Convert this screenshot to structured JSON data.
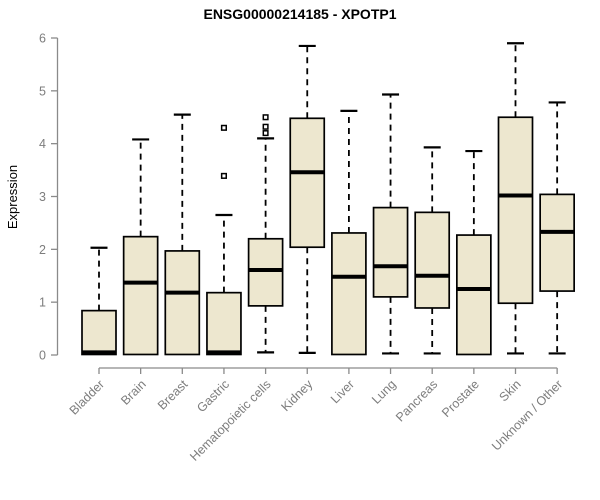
{
  "chart_data": {
    "type": "boxplot",
    "title": "ENSG00000214185 - XPOTP1",
    "xlabel": "",
    "ylabel": "Expression",
    "ylim": [
      0,
      6
    ],
    "yticks": [
      0,
      1,
      2,
      3,
      4,
      5,
      6
    ],
    "grid": "off",
    "legend": "none",
    "categories": [
      "Bladder",
      "Brain",
      "Breast",
      "Gastric",
      "Hematopoietic cells",
      "Kidney",
      "Liver",
      "Lung",
      "Pancreas",
      "Prostate",
      "Skin",
      "Unknown / Other"
    ],
    "series": [
      {
        "name": "Bladder",
        "low": 0.01,
        "q1": 0.01,
        "median": 0.05,
        "q3": 0.84,
        "high": 2.03,
        "outliers": []
      },
      {
        "name": "Brain",
        "low": 0.01,
        "q1": 0.01,
        "median": 1.37,
        "q3": 2.24,
        "high": 4.08,
        "outliers": []
      },
      {
        "name": "Breast",
        "low": 0.01,
        "q1": 0.01,
        "median": 1.18,
        "q3": 1.97,
        "high": 4.55,
        "outliers": []
      },
      {
        "name": "Gastric",
        "low": 0.01,
        "q1": 0.01,
        "median": 0.05,
        "q3": 1.18,
        "high": 2.65,
        "outliers": [
          3.39,
          4.3
        ]
      },
      {
        "name": "Hematopoietic cells",
        "low": 0.05,
        "q1": 0.93,
        "median": 1.61,
        "q3": 2.2,
        "high": 4.1,
        "outliers": [
          4.2,
          4.32,
          4.5
        ]
      },
      {
        "name": "Kidney",
        "low": 0.04,
        "q1": 2.04,
        "median": 3.46,
        "q3": 4.48,
        "high": 5.85,
        "outliers": []
      },
      {
        "name": "Liver",
        "low": 0.01,
        "q1": 0.01,
        "median": 1.48,
        "q3": 2.31,
        "high": 4.62,
        "outliers": []
      },
      {
        "name": "Lung",
        "low": 0.03,
        "q1": 1.1,
        "median": 1.68,
        "q3": 2.79,
        "high": 4.93,
        "outliers": []
      },
      {
        "name": "Pancreas",
        "low": 0.03,
        "q1": 0.89,
        "median": 1.5,
        "q3": 2.7,
        "high": 3.93,
        "outliers": []
      },
      {
        "name": "Prostate",
        "low": 0.01,
        "q1": 0.01,
        "median": 1.25,
        "q3": 2.27,
        "high": 3.86,
        "outliers": []
      },
      {
        "name": "Skin",
        "low": 0.03,
        "q1": 0.98,
        "median": 3.02,
        "q3": 4.5,
        "high": 5.9,
        "outliers": []
      },
      {
        "name": "Unknown / Other",
        "low": 0.03,
        "q1": 1.21,
        "median": 2.33,
        "q3": 3.04,
        "high": 4.78,
        "outliers": []
      }
    ],
    "colors": {
      "box_fill": "#ede7cf",
      "box_stroke": "#000000",
      "median": "#000000",
      "whisker": "#000000",
      "axis_line": "#8a8a8a",
      "axis_text": "#7d7d7d",
      "title": "#000000",
      "background": "#ffffff"
    }
  }
}
